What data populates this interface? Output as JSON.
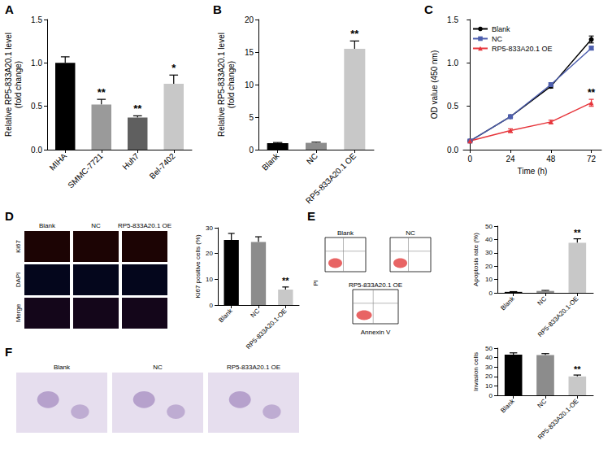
{
  "chart_data": [
    {
      "panel": "A",
      "type": "bar",
      "ylabel": "Relative RP5-833A20.1 level\n(fold change)",
      "categories": [
        "MIHA",
        "SMMC-7721",
        "Huh7",
        "Bel-7402"
      ],
      "values": [
        1.0,
        0.52,
        0.37,
        0.76
      ],
      "errors": [
        0.07,
        0.06,
        0.02,
        0.1
      ],
      "colors": [
        "#000000",
        "#9a9a9a",
        "#5f5f5f",
        "#c8c8c8"
      ],
      "annotations": [
        null,
        "**",
        "**",
        "*"
      ],
      "ylim": [
        0,
        1.5
      ],
      "yticks": [
        {
          "value": 0,
          "label": "0.0"
        },
        0.5,
        {
          "value": 1,
          "label": "1.0"
        },
        1.5
      ]
    },
    {
      "panel": "B",
      "type": "bar",
      "ylabel": "Relative RP5-833A20.1 level\n(fold change)",
      "categories": [
        "Blank",
        "NC",
        "RP5-833A20.1 OE"
      ],
      "values": [
        1.0,
        1.05,
        15.5
      ],
      "errors": [
        0.1,
        0.1,
        1.2
      ],
      "colors": [
        "#000000",
        "#8c8c8c",
        "#c8c8c8"
      ],
      "annotations": [
        null,
        null,
        "**"
      ],
      "ylim": [
        0,
        20
      ],
      "yticks": [
        0,
        5,
        10,
        15,
        20
      ]
    },
    {
      "panel": "C",
      "type": "line",
      "xlabel": "Time (h)",
      "ylabel": "OD value (450 nm)",
      "x": [
        0,
        24,
        48,
        72
      ],
      "xlim": [
        -4,
        78
      ],
      "xticks": [
        0,
        24,
        48,
        72
      ],
      "ylim": [
        0,
        1.5
      ],
      "yticks": [
        {
          "value": 0,
          "label": "0.0"
        },
        0.5,
        {
          "value": 1,
          "label": "1.0"
        },
        1.5
      ],
      "legend": "upper left",
      "series": [
        {
          "name": "Blank",
          "color": "#000000",
          "marker": "circle",
          "values": [
            0.1,
            0.38,
            0.73,
            1.27
          ],
          "errors": [
            0.01,
            0.01,
            0.02,
            0.04
          ]
        },
        {
          "name": "NC",
          "color": "#4e5fae",
          "marker": "square",
          "values": [
            0.1,
            0.38,
            0.75,
            1.17
          ],
          "errors": [
            0.01,
            0.01,
            0.02,
            0.02
          ]
        },
        {
          "name": "RP5-833A20.1 OE",
          "color": "#e6353b",
          "marker": "triangle",
          "values": [
            0.1,
            0.22,
            0.32,
            0.54
          ],
          "errors": [
            0.01,
            0.02,
            0.02,
            0.04
          ],
          "annotations": [
            null,
            null,
            null,
            "**"
          ]
        }
      ]
    },
    {
      "type": "bar",
      "ylabel": "Ki67 positive cells (%)",
      "categories": [
        "Blank",
        "NC",
        "RP5-833A20.1-OE"
      ],
      "values": [
        25.3,
        24.5,
        6.0
      ],
      "errors": [
        2.5,
        2.0,
        1.0
      ],
      "colors": [
        "#000000",
        "#8c8c8c",
        "#c8c8c8"
      ],
      "annotations": [
        null,
        null,
        "**"
      ],
      "ylim": [
        0,
        30
      ],
      "yticks": [
        0,
        10,
        20,
        30
      ]
    },
    {
      "type": "bar",
      "ylabel": "Apoptosis rate (%)",
      "categories": [
        "Blank",
        "NC",
        "RP5-833A20.1-OE"
      ],
      "values": [
        0.7,
        1.4,
        37.5
      ],
      "errors": [
        0.2,
        0.4,
        3.0
      ],
      "colors": [
        "#000000",
        "#8c8c8c",
        "#c8c8c8"
      ],
      "annotations": [
        null,
        null,
        "**"
      ],
      "ylim": [
        0,
        50
      ],
      "yticks": [
        0,
        10,
        20,
        30,
        40,
        50
      ]
    },
    {
      "type": "bar",
      "ylabel": "Invasion cells",
      "categories": [
        "Blank",
        "NC",
        "RP5-833A20.1-OE"
      ],
      "values": [
        43.2,
        42.7,
        20.0
      ],
      "errors": [
        1.8,
        1.5,
        1.5
      ],
      "colors": [
        "#000000",
        "#8c8c8c",
        "#c8c8c8"
      ],
      "annotations": [
        null,
        null,
        "**"
      ],
      "ylim": [
        0,
        50
      ],
      "yticks": [
        0,
        10,
        20,
        30,
        40,
        50
      ]
    }
  ],
  "image_panels": [
    {
      "panel": "D",
      "columns": [
        "Blank",
        "NC",
        "RP5-833A20.1 OE"
      ],
      "rows": [
        "Ki67",
        "DAPI",
        "Merge"
      ]
    },
    {
      "panel": "E",
      "plots": [
        "Blank",
        "NC",
        "RP5-833A20.1 OE"
      ],
      "xlabel": "Annexin V",
      "ylabel": "PI"
    },
    {
      "panel": "F",
      "columns": [
        "Blank",
        "NC",
        "RP5-833A20.1 OE"
      ]
    }
  ]
}
